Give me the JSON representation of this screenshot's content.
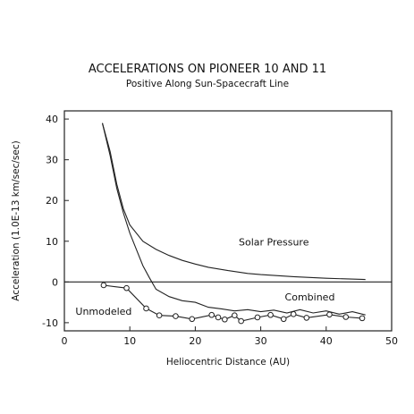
{
  "chart_data": {
    "type": "line",
    "title": "ACCELERATIONS ON PIONEER 10 AND 11",
    "subtitle": "Positive Along Sun-Spacecraft Line",
    "xlabel": "Heliocentric Distance (AU)",
    "ylabel": "Acceleration (1.0E-13 km/sec/sec)",
    "xlim": [
      0,
      50
    ],
    "ylim": [
      -12,
      42
    ],
    "xticks": [
      0,
      10,
      20,
      30,
      40,
      50
    ],
    "yticks": [
      -10,
      0,
      10,
      20,
      30,
      40
    ],
    "grid": false,
    "zero_line": true,
    "series": [
      {
        "name": "Solar Pressure",
        "x": [
          5.8,
          7,
          8,
          9,
          10,
          12,
          14,
          16,
          18,
          20,
          22,
          25,
          28,
          30,
          35,
          40,
          46
        ],
        "y": [
          39,
          32,
          24,
          18,
          14,
          10,
          8,
          6.5,
          5.3,
          4.4,
          3.6,
          2.8,
          2.1,
          1.8,
          1.3,
          0.9,
          0.6
        ]
      },
      {
        "name": "Combined",
        "x": [
          5.8,
          7,
          8,
          9,
          10,
          11,
          12,
          13,
          14,
          16,
          18,
          20,
          22,
          24,
          26,
          28,
          30,
          32,
          34,
          36,
          38,
          40,
          42,
          44,
          46
        ],
        "y": [
          39,
          31,
          23,
          17,
          12,
          8,
          4,
          1,
          -1.8,
          -3.6,
          -4.6,
          -5,
          -6.2,
          -6.6,
          -7.1,
          -6.8,
          -7.3,
          -6.9,
          -7.6,
          -6.8,
          -7.6,
          -7.1,
          -7.9,
          -7.3,
          -8.1
        ]
      },
      {
        "name": "Unmodeled",
        "markers": true,
        "x": [
          6,
          9.5,
          12.5,
          14.5,
          17,
          19.5,
          22.5,
          23.5,
          24.5,
          26,
          27,
          29.5,
          31.5,
          33.5,
          35,
          37,
          40.5,
          43,
          45.5
        ],
        "y": [
          -0.8,
          -1.5,
          -6.5,
          -8.2,
          -8.4,
          -9.1,
          -8.1,
          -8.7,
          -9.2,
          -8.2,
          -9.6,
          -8.7,
          -8.1,
          -9.1,
          -7.9,
          -8.8,
          -8.0,
          -8.6,
          -8.9
        ]
      }
    ],
    "annotations": [
      {
        "text": "Solar Pressure",
        "x": 32,
        "y": 9,
        "anchor": "middle"
      },
      {
        "text": "Combined",
        "x": 37.5,
        "y": -4.5,
        "anchor": "middle"
      },
      {
        "text": "Unmodeled",
        "x": 6,
        "y": -8,
        "anchor": "middle"
      }
    ]
  }
}
